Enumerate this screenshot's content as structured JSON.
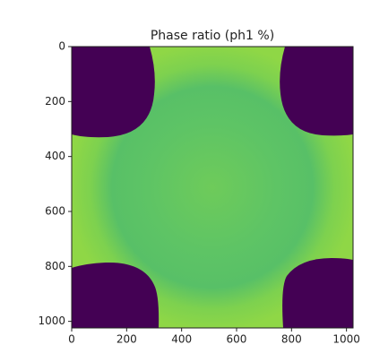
{
  "chart_data": {
    "type": "image",
    "title": "Phase ratio (ph1 %)",
    "xlim": [
      0,
      1024
    ],
    "ylim": [
      1024,
      0
    ],
    "xticks": [
      0,
      200,
      400,
      600,
      800,
      1000
    ],
    "yticks": [
      0,
      200,
      400,
      600,
      800,
      1000
    ],
    "colormap": "viridis"
  }
}
